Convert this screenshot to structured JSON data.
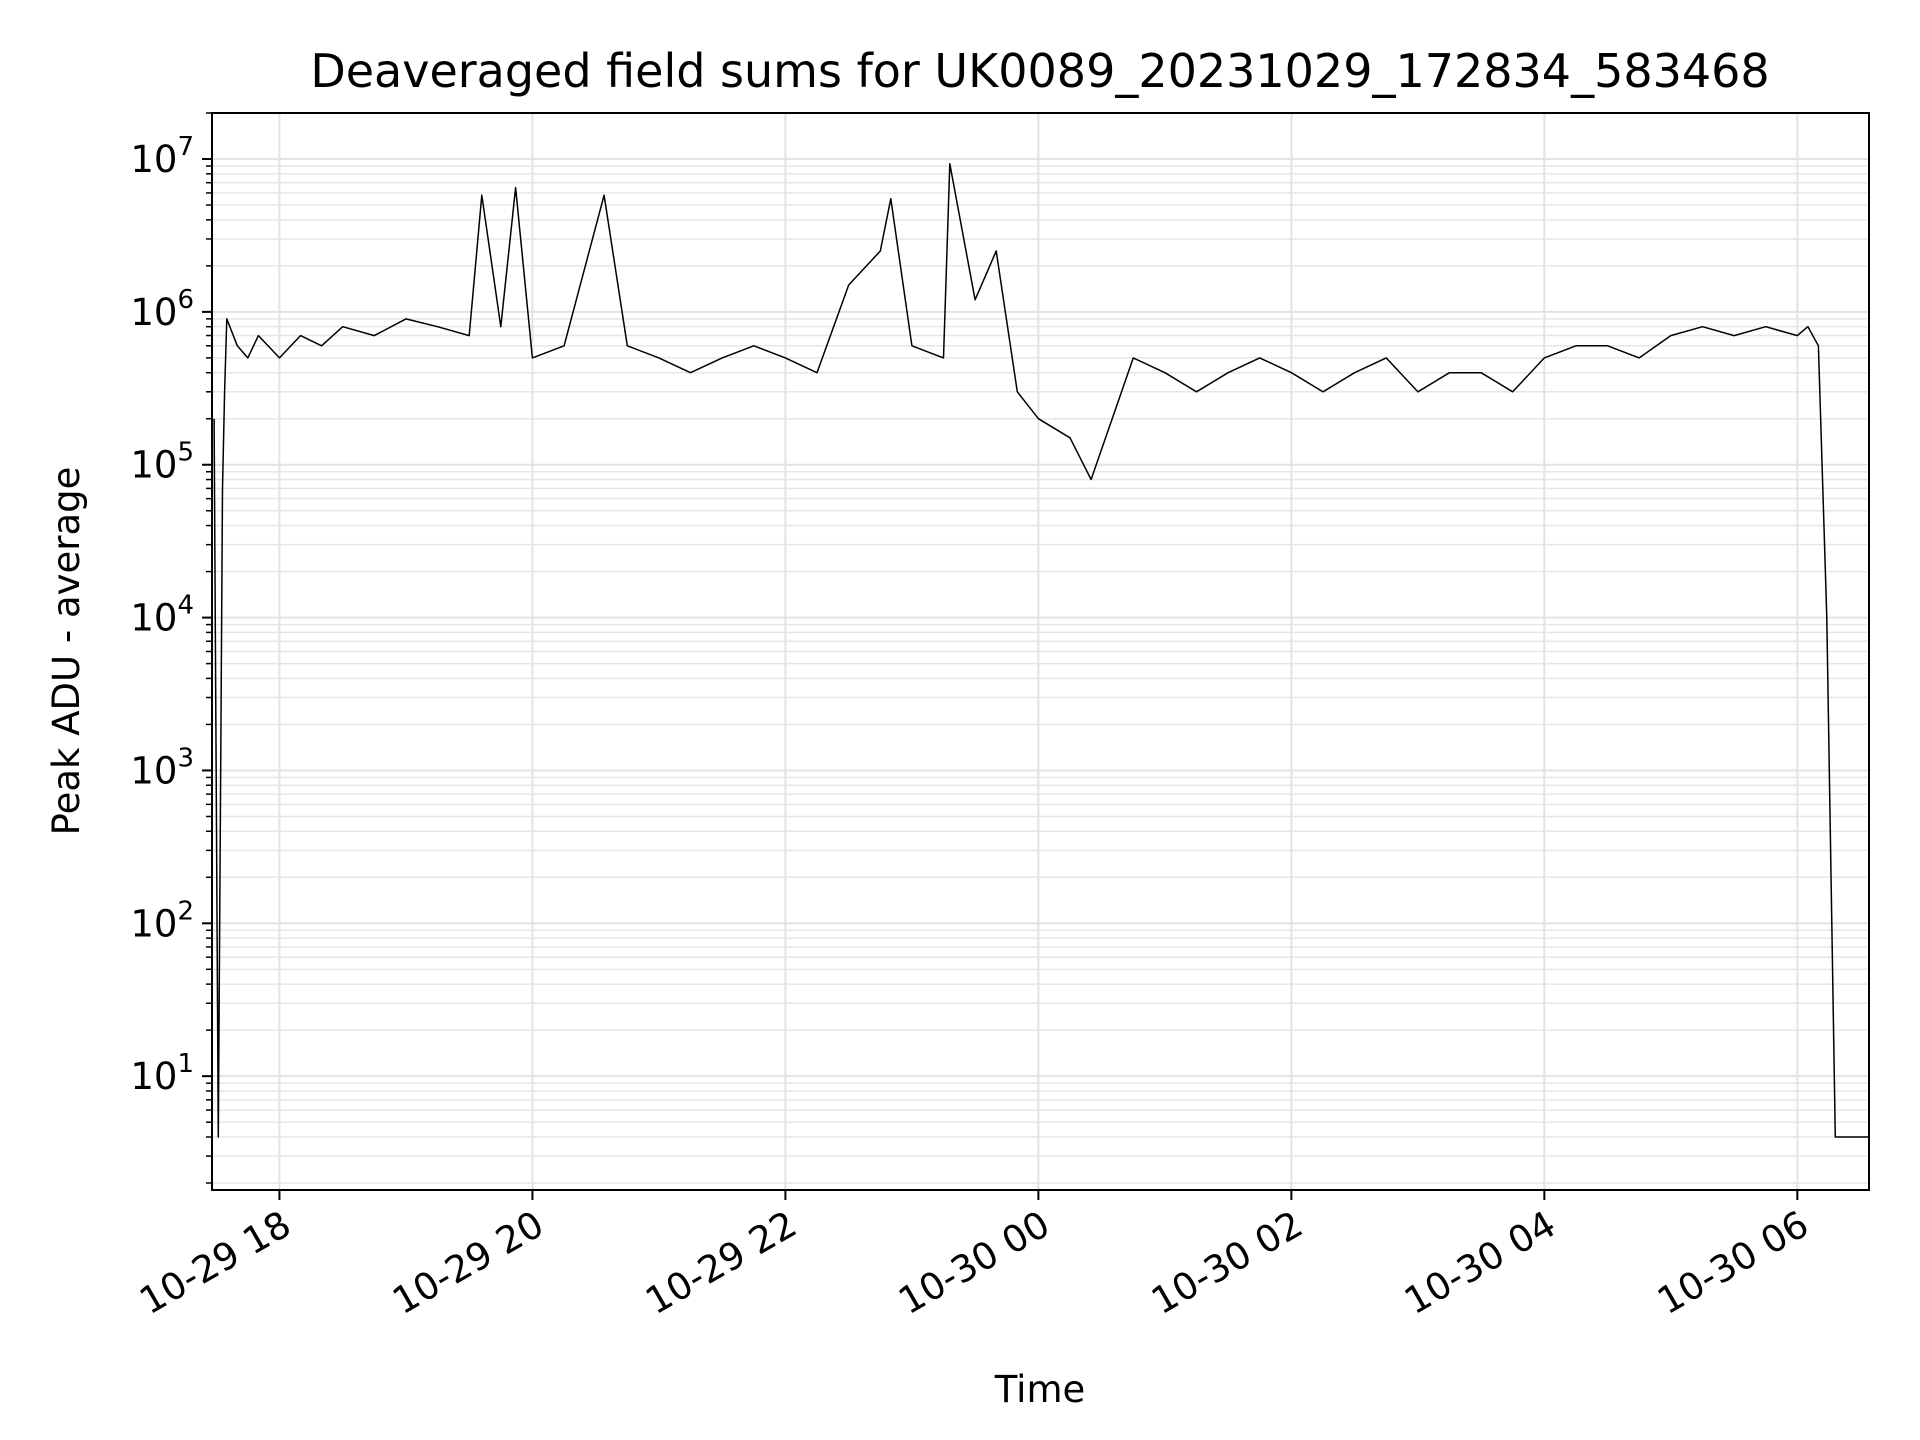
{
  "chart_data": {
    "type": "line",
    "title": "Deaveraged field sums for UK0089_20231029_172834_583468",
    "xlabel": "Time",
    "ylabel": "Peak ADU - average",
    "x_ticks": [
      "2023-10-29T18:00",
      "2023-10-29T20:00",
      "2023-10-29T22:00",
      "2023-10-30T00:00",
      "2023-10-30T02:00",
      "2023-10-30T04:00",
      "2023-10-30T06:00"
    ],
    "x_tick_labels": [
      "10-29 18",
      "10-29 20",
      "10-29 22",
      "10-30 00",
      "10-30 02",
      "10-30 04",
      "10-30 06"
    ],
    "xlim": [
      "2023-10-29T17:28",
      "2023-10-30T06:34"
    ],
    "y_scale": "log",
    "y_ticks": [
      10,
      100,
      1000,
      10000,
      100000,
      1000000,
      10000000
    ],
    "y_tick_labels": [
      {
        "base": "10",
        "exp": "1"
      },
      {
        "base": "10",
        "exp": "2"
      },
      {
        "base": "10",
        "exp": "3"
      },
      {
        "base": "10",
        "exp": "4"
      },
      {
        "base": "10",
        "exp": "5"
      },
      {
        "base": "10",
        "exp": "6"
      },
      {
        "base": "10",
        "exp": "7"
      }
    ],
    "ylim": [
      1.8,
      20000000
    ],
    "grid": true,
    "series": [
      {
        "color": "#000000",
        "x": [
          "2023-10-29T17:29",
          "2023-10-29T17:31",
          "2023-10-29T17:33",
          "2023-10-29T17:34",
          "2023-10-29T17:35",
          "2023-10-29T17:40",
          "2023-10-29T17:45",
          "2023-10-29T17:50",
          "2023-10-29T18:00",
          "2023-10-29T18:10",
          "2023-10-29T18:20",
          "2023-10-29T18:30",
          "2023-10-29T18:45",
          "2023-10-29T19:00",
          "2023-10-29T19:15",
          "2023-10-29T19:30",
          "2023-10-29T19:36",
          "2023-10-29T19:45",
          "2023-10-29T19:52",
          "2023-10-29T20:00",
          "2023-10-29T20:15",
          "2023-10-29T20:34",
          "2023-10-29T20:45",
          "2023-10-29T21:00",
          "2023-10-29T21:15",
          "2023-10-29T21:30",
          "2023-10-29T21:45",
          "2023-10-29T22:00",
          "2023-10-29T22:15",
          "2023-10-29T22:30",
          "2023-10-29T22:45",
          "2023-10-29T22:50",
          "2023-10-29T23:00",
          "2023-10-29T23:15",
          "2023-10-29T23:18",
          "2023-10-29T23:30",
          "2023-10-29T23:40",
          "2023-10-29T23:50",
          "2023-10-30T00:00",
          "2023-10-30T00:15",
          "2023-10-30T00:25",
          "2023-10-30T00:35",
          "2023-10-30T00:45",
          "2023-10-30T01:00",
          "2023-10-30T01:15",
          "2023-10-30T01:30",
          "2023-10-30T01:45",
          "2023-10-30T02:00",
          "2023-10-30T02:15",
          "2023-10-30T02:30",
          "2023-10-30T02:45",
          "2023-10-30T03:00",
          "2023-10-30T03:15",
          "2023-10-30T03:30",
          "2023-10-30T03:45",
          "2023-10-30T04:00",
          "2023-10-30T04:15",
          "2023-10-30T04:30",
          "2023-10-30T04:45",
          "2023-10-30T05:00",
          "2023-10-30T05:15",
          "2023-10-30T05:30",
          "2023-10-30T05:45",
          "2023-10-30T06:00",
          "2023-10-30T06:05",
          "2023-10-30T06:10",
          "2023-10-30T06:14",
          "2023-10-30T06:18",
          "2023-10-30T06:20",
          "2023-10-30T06:34"
        ],
        "y": [
          200000,
          4,
          70000,
          300000,
          900000,
          600000,
          500000,
          700000,
          500000,
          700000,
          600000,
          800000,
          700000,
          900000,
          800000,
          700000,
          5800000,
          800000,
          6500000,
          500000,
          600000,
          5800000,
          600000,
          500000,
          400000,
          500000,
          600000,
          500000,
          400000,
          1500000,
          2500000,
          5500000,
          600000,
          500000,
          9300000,
          1200000,
          2500000,
          300000,
          200000,
          150000,
          80000,
          200000,
          500000,
          400000,
          300000,
          400000,
          500000,
          400000,
          300000,
          400000,
          500000,
          300000,
          400000,
          400000,
          300000,
          500000,
          600000,
          600000,
          500000,
          700000,
          800000,
          700000,
          800000,
          700000,
          800000,
          600000,
          10000,
          4,
          4,
          4
        ]
      }
    ]
  }
}
